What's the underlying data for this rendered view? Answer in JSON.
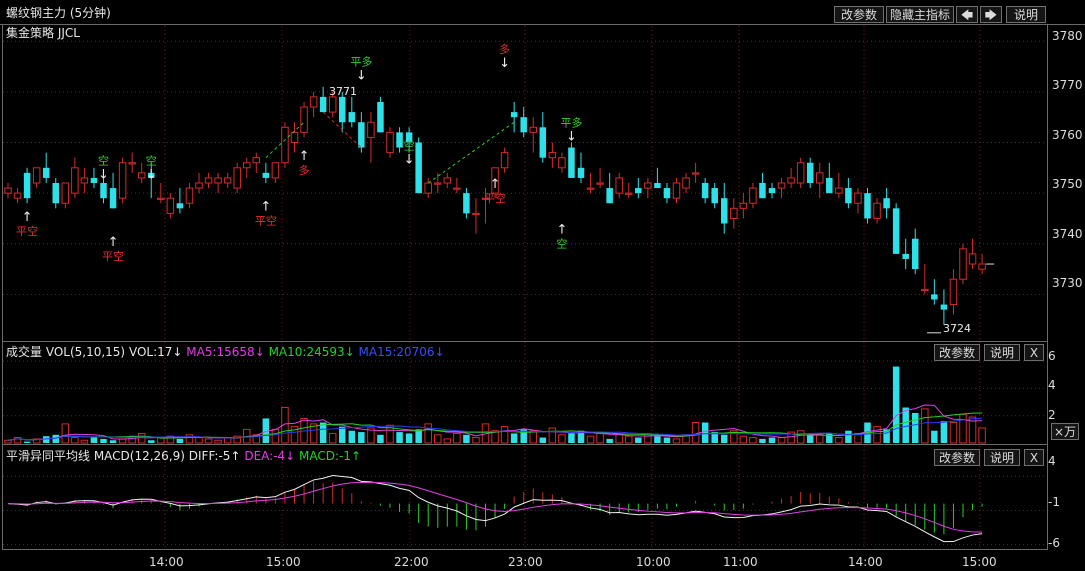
{
  "header": {
    "title": "螺纹钢主力 (5分钟)",
    "strategy": "集金策略 JJCL",
    "buttons": {
      "params": "改参数",
      "hide": "隐藏主指标",
      "left": "🡄",
      "right": "🡆",
      "help": "说明"
    }
  },
  "colors": {
    "up": "#d32b2b",
    "down": "#2ee0e8",
    "ma5": "#e040e0",
    "ma10": "#26d02b",
    "ma15": "#2a3cf0",
    "grid": "#8a1414"
  },
  "main": {
    "y_ticks": [
      "3780",
      "3770",
      "3760",
      "3750",
      "3740",
      "3730"
    ],
    "y_min": 3721,
    "y_max": 3783,
    "low_label": "3724",
    "high_label": "3771",
    "signals": [
      {
        "label": "平空",
        "arrow": "↑",
        "at": 2,
        "price": 3746.5,
        "pos": "below"
      },
      {
        "label": "空",
        "arrow": "↓",
        "at": 10,
        "price": 3752.5,
        "pos": "above"
      },
      {
        "label": "平空",
        "arrow": "↑",
        "at": 11,
        "price": 3741.5,
        "pos": "below"
      },
      {
        "label": "空",
        "arrow": "↓",
        "at": 15,
        "price": 3752.5,
        "pos": "above"
      },
      {
        "label": "平空",
        "arrow": "↑",
        "at": 27,
        "price": 3748.5,
        "pos": "below"
      },
      {
        "label": "多",
        "arrow": "↑",
        "at": 31,
        "price": 3758.5,
        "pos": "below"
      },
      {
        "label": "平多",
        "arrow": "↓",
        "at": 37,
        "price": 3772,
        "pos": "above"
      },
      {
        "label": "空",
        "arrow": "↓",
        "at": 42,
        "price": 3755.5,
        "pos": "above"
      },
      {
        "label": "多",
        "arrow": "↓",
        "at": 52,
        "price": 3774.5,
        "pos": "above"
      },
      {
        "label": "平空",
        "arrow": "↑",
        "at": 51,
        "price": 3753,
        "pos": "below"
      },
      {
        "label": "平多",
        "arrow": "↓",
        "at": 59,
        "price": 3760,
        "pos": "above"
      },
      {
        "label": "空",
        "arrow": "↑",
        "at": 58,
        "price": 3744,
        "pos": "below"
      }
    ]
  },
  "volume": {
    "label": "成交量 VOL(5,10,15)",
    "vol": "VOL:17↓",
    "ma5": "MA5:15658↓",
    "ma10": "MA10:24593↓",
    "ma15": "MA15:20706↓",
    "y_ticks": [
      "6",
      "4",
      "2"
    ],
    "unit_button": "×万",
    "buttons": {
      "params": "改参数",
      "help": "说明",
      "close": "X"
    }
  },
  "macd": {
    "label": "平滑异同平均线 MACD(12,26,9)",
    "diff": "DIFF:-5↑",
    "dea": "DEA:-4↓",
    "macd": "MACD:-1↑",
    "y_ticks": [
      "4",
      "-1",
      "-6"
    ],
    "buttons": {
      "params": "改参数",
      "help": "说明",
      "close": "X"
    }
  },
  "x_axis": {
    "labels": [
      "14:00",
      "15:00",
      "22:00",
      "23:00",
      "10:00",
      "11:00",
      "14:00",
      "15:00"
    ]
  },
  "chart_data": {
    "type": "candlestick",
    "ohlc": [
      [
        3750,
        3752,
        3749,
        3751
      ],
      [
        3749,
        3751,
        3748,
        3750
      ],
      [
        3754,
        3755,
        3748,
        3749
      ],
      [
        3752,
        3755,
        3751,
        3755
      ],
      [
        3755,
        3758,
        3752,
        3753
      ],
      [
        3752,
        3753,
        3747,
        3748
      ],
      [
        3748,
        3752,
        3747,
        3752
      ],
      [
        3750,
        3757,
        3749,
        3755
      ],
      [
        3752,
        3755,
        3750,
        3753
      ],
      [
        3753,
        3755,
        3751,
        3752
      ],
      [
        3752,
        3754,
        3748,
        3749
      ],
      [
        3751,
        3754,
        3747,
        3747
      ],
      [
        3749,
        3757,
        3748,
        3756
      ],
      [
        3756,
        3758,
        3754,
        3756
      ],
      [
        3753,
        3756,
        3752,
        3754
      ],
      [
        3754,
        3756,
        3749,
        3753
      ],
      [
        3749,
        3752,
        3748,
        3749
      ],
      [
        3746,
        3750,
        3745,
        3749
      ],
      [
        3748,
        3751,
        3746,
        3747
      ],
      [
        3748,
        3752,
        3747,
        3751
      ],
      [
        3751,
        3754,
        3750,
        3752
      ],
      [
        3752,
        3754,
        3751,
        3753
      ],
      [
        3752,
        3754,
        3750,
        3753
      ],
      [
        3752,
        3754,
        3751,
        3753
      ],
      [
        3751,
        3756,
        3750,
        3755
      ],
      [
        3755,
        3757,
        3753,
        3756
      ],
      [
        3756,
        3758,
        3754,
        3757
      ],
      [
        3754,
        3756,
        3752,
        3753
      ],
      [
        3753,
        3756,
        3752,
        3756
      ],
      [
        3756,
        3764,
        3755,
        3763
      ],
      [
        3760,
        3764,
        3758,
        3762
      ],
      [
        3762,
        3768,
        3761,
        3767
      ],
      [
        3767,
        3770,
        3765,
        3769
      ],
      [
        3769,
        3771,
        3766,
        3766
      ],
      [
        3766,
        3770,
        3765,
        3769
      ],
      [
        3769,
        3770,
        3762,
        3764
      ],
      [
        3766,
        3769,
        3763,
        3764
      ],
      [
        3764,
        3766,
        3758,
        3759
      ],
      [
        3761,
        3766,
        3756,
        3764
      ],
      [
        3768,
        3769,
        3762,
        3762
      ],
      [
        3758,
        3763,
        3757,
        3762
      ],
      [
        3762,
        3763,
        3758,
        3759
      ],
      [
        3762,
        3763,
        3758,
        3760
      ],
      [
        3760,
        3761,
        3750,
        3750
      ],
      [
        3750,
        3753,
        3749,
        3752
      ],
      [
        3752,
        3754,
        3750,
        3752
      ],
      [
        3752,
        3754,
        3751,
        3753
      ],
      [
        3751,
        3753,
        3750,
        3751
      ],
      [
        3750,
        3751,
        3745,
        3746
      ],
      [
        3746,
        3749,
        3742,
        3746
      ],
      [
        3749,
        3751,
        3744,
        3749
      ],
      [
        3750,
        3755,
        3749,
        3755
      ],
      [
        3755,
        3759,
        3754,
        3758
      ],
      [
        3766,
        3768,
        3762,
        3765
      ],
      [
        3765,
        3767,
        3761,
        3762
      ],
      [
        3762,
        3765,
        3758,
        3763
      ],
      [
        3763,
        3766,
        3756,
        3757
      ],
      [
        3757,
        3760,
        3755,
        3758
      ],
      [
        3755,
        3758,
        3754,
        3757
      ],
      [
        3759,
        3760,
        3753,
        3753
      ],
      [
        3755,
        3758,
        3752,
        3753
      ],
      [
        3751,
        3754,
        3750,
        3751
      ],
      [
        3752,
        3755,
        3751,
        3752
      ],
      [
        3751,
        3754,
        3748,
        3748
      ],
      [
        3750,
        3754,
        3749,
        3753
      ],
      [
        3750,
        3752,
        3749,
        3750
      ],
      [
        3751,
        3753,
        3749,
        3750
      ],
      [
        3751,
        3753,
        3749,
        3752
      ],
      [
        3752,
        3755,
        3751,
        3751
      ],
      [
        3751,
        3752,
        3748,
        3749
      ],
      [
        3749,
        3753,
        3748,
        3752
      ],
      [
        3751,
        3754,
        3750,
        3753
      ],
      [
        3754,
        3756,
        3752,
        3754
      ],
      [
        3752,
        3753,
        3748,
        3749
      ],
      [
        3751,
        3752,
        3747,
        3748
      ],
      [
        3749,
        3752,
        3742,
        3744
      ],
      [
        3745,
        3749,
        3743,
        3747
      ],
      [
        3747,
        3750,
        3745,
        3748
      ],
      [
        3748,
        3752,
        3747,
        3751
      ],
      [
        3752,
        3754,
        3749,
        3749
      ],
      [
        3751,
        3752,
        3749,
        3750
      ],
      [
        3751,
        3753,
        3749,
        3752
      ],
      [
        3752,
        3755,
        3751,
        3753
      ],
      [
        3752,
        3757,
        3751,
        3756
      ],
      [
        3756,
        3757,
        3751,
        3752
      ],
      [
        3752,
        3756,
        3749,
        3754
      ],
      [
        3753,
        3756,
        3750,
        3750
      ],
      [
        3750,
        3754,
        3749,
        3751
      ],
      [
        3751,
        3753,
        3747,
        3748
      ],
      [
        3748,
        3751,
        3746,
        3750
      ],
      [
        3750,
        3751,
        3744,
        3745
      ],
      [
        3745,
        3749,
        3744,
        3748
      ],
      [
        3749,
        3751,
        3745,
        3747
      ],
      [
        3747,
        3748,
        3738,
        3738
      ],
      [
        3738,
        3741,
        3735,
        3737
      ],
      [
        3741,
        3743,
        3734,
        3735
      ],
      [
        3731,
        3736,
        3730,
        3731
      ],
      [
        3730,
        3733,
        3728,
        3729
      ],
      [
        3728,
        3731,
        3724,
        3727
      ],
      [
        3728,
        3735,
        3726,
        3733
      ],
      [
        3733,
        3740,
        3732,
        3739
      ],
      [
        3736,
        3741,
        3735,
        3738
      ],
      [
        3735,
        3738,
        3734,
        3736
      ]
    ],
    "volume_wan": [
      0.2,
      0.4,
      0.1,
      0.3,
      0.5,
      0.6,
      1.4,
      0.4,
      0.2,
      0.4,
      0.3,
      0.2,
      0.3,
      0.5,
      0.7,
      0.2,
      0.4,
      0.5,
      0.3,
      0.6,
      0.4,
      0.3,
      0.2,
      0.4,
      0.5,
      1.0,
      0.6,
      1.8,
      1.0,
      2.6,
      1.2,
      1.8,
      1.4,
      1.5,
      0.7,
      1.2,
      0.9,
      0.8,
      1.1,
      0.6,
      1.3,
      0.8,
      0.7,
      1.0,
      1.4,
      0.6,
      0.3,
      0.7,
      0.6,
      0.4,
      1.4,
      0.9,
      1.2,
      0.7,
      1.0,
      0.9,
      0.4,
      1.1,
      0.6,
      0.7,
      0.9,
      0.5,
      0.8,
      0.3,
      0.6,
      0.5,
      0.4,
      0.7,
      0.5,
      0.4,
      0.3,
      0.6,
      1.5,
      1.5,
      0.8,
      0.6,
      0.9,
      0.5,
      0.4,
      0.3,
      0.4,
      0.4,
      0.8,
      0.9,
      0.6,
      0.6,
      0.7,
      0.4,
      0.9,
      0.7,
      1.5,
      1.2,
      1.0,
      5.6,
      2.6,
      2.2,
      2.5,
      0.9,
      1.6,
      1.5,
      2.1,
      1.9,
      1.1
    ],
    "vol_ylim": [
      0,
      6.3
    ],
    "macd_ylim": [
      -6.5,
      5.5
    ]
  }
}
